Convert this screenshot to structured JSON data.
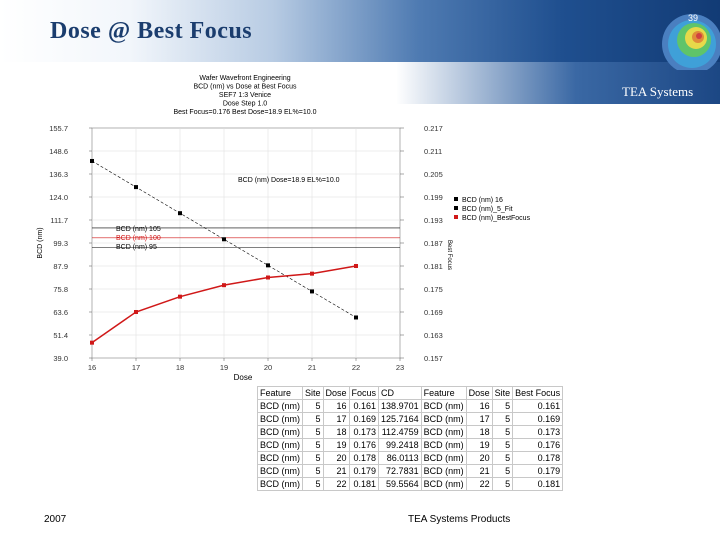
{
  "slide": {
    "title": "Dose @ Best Focus",
    "page_number": "39",
    "brand": "TEA Systems",
    "footer_year": "2007",
    "footer_text": "TEA Systems Products"
  },
  "chart_data": {
    "type": "line",
    "title_lines": [
      "Wafer Wavefront Engineering",
      "BCD (nm) vs Dose at Best Focus",
      "SEF7 1:3 Venice",
      "Dose Step 1.0",
      "Best Focus=0.176 Best Dose=18.9 EL%=10.0"
    ],
    "xlabel": "Dose",
    "ylabel": "BCD (nm)",
    "y2label": "Best Focus",
    "x": [
      16,
      17,
      18,
      19,
      20,
      21,
      22
    ],
    "xlim": [
      16,
      23
    ],
    "x_ticks": [
      "16",
      "17",
      "18",
      "19",
      "20",
      "21",
      "22",
      "23"
    ],
    "ylim": [
      39.0,
      155.7
    ],
    "y_ticks": [
      "39.0",
      "51.4",
      "63.6",
      "75.8",
      "87.9",
      "99.3",
      "111.7",
      "124.0",
      "136.3",
      "148.6",
      "155.7"
    ],
    "y2lim": [
      0.157,
      0.217
    ],
    "y2_ticks": [
      "0.157",
      "0.163",
      "0.169",
      "0.175",
      "0.181",
      "0.187",
      "0.193",
      "0.199",
      "0.205",
      "0.211",
      "0.217"
    ],
    "series": [
      {
        "name": "BCD (nm) 16",
        "axis": "left",
        "color": "#000000",
        "values": [
          138.9701,
          125.7164,
          112.4759,
          99.2418,
          86.0113,
          72.7831,
          59.5564
        ]
      },
      {
        "name": "BCD (nm)_5_Fit",
        "axis": "left",
        "color": "#000000",
        "dashed": true,
        "values": [
          138.9701,
          125.7164,
          112.4759,
          99.2418,
          86.0113,
          72.7831,
          59.5564
        ]
      },
      {
        "name": "BCD (nm)_BestFocus",
        "axis": "right",
        "color": "#d01818",
        "values": [
          0.161,
          0.169,
          0.173,
          0.176,
          0.178,
          0.179,
          0.181
        ]
      }
    ],
    "annotation": "BCD (nm) Dose=18.9 EL%=10.0",
    "reference_lines": [
      {
        "label": "BCD (nm) 105",
        "value": 105,
        "color": "#000000"
      },
      {
        "label": "BCD (nm) 100",
        "value": 100,
        "color": "#d01818"
      },
      {
        "label": "BCD (nm) 95",
        "value": 95,
        "color": "#000000"
      }
    ],
    "grid": true,
    "legend_position": "right"
  },
  "table": {
    "headers": [
      "Feature",
      "Site",
      "Dose",
      "Focus",
      "CD",
      "Feature",
      "Dose",
      "Site",
      "Best Focus"
    ],
    "rows": [
      [
        "BCD (nm)",
        "5",
        "16",
        "0.161",
        "138.9701",
        "BCD (nm)",
        "16",
        "5",
        "0.161"
      ],
      [
        "BCD (nm)",
        "5",
        "17",
        "0.169",
        "125.7164",
        "BCD (nm)",
        "17",
        "5",
        "0.169"
      ],
      [
        "BCD (nm)",
        "5",
        "18",
        "0.173",
        "112.4759",
        "BCD (nm)",
        "18",
        "5",
        "0.173"
      ],
      [
        "BCD (nm)",
        "5",
        "19",
        "0.176",
        "99.2418",
        "BCD (nm)",
        "19",
        "5",
        "0.176"
      ],
      [
        "BCD (nm)",
        "5",
        "20",
        "0.178",
        "86.0113",
        "BCD (nm)",
        "20",
        "5",
        "0.178"
      ],
      [
        "BCD (nm)",
        "5",
        "21",
        "0.179",
        "72.7831",
        "BCD (nm)",
        "21",
        "5",
        "0.179"
      ],
      [
        "BCD (nm)",
        "5",
        "22",
        "0.181",
        "59.5564",
        "BCD (nm)",
        "22",
        "5",
        "0.181"
      ]
    ]
  }
}
